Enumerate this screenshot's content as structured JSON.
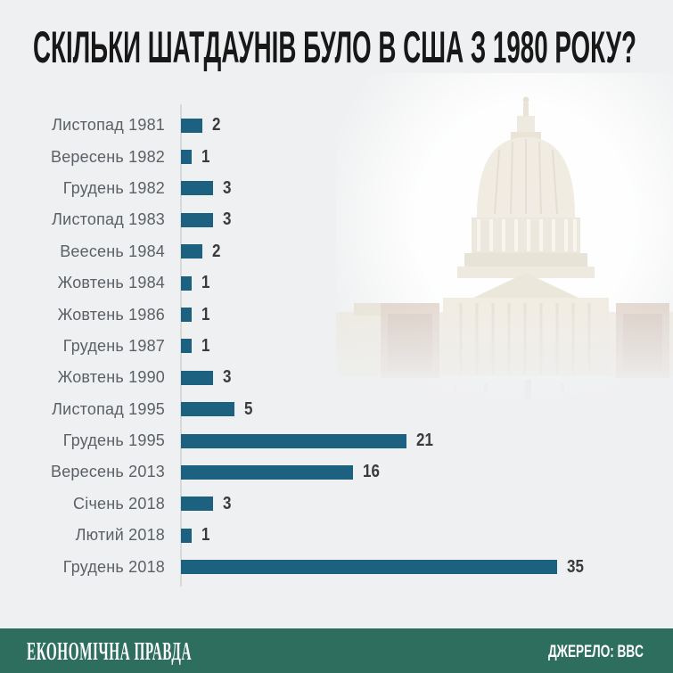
{
  "header": {
    "title": "СКІЛЬКИ ШАТДАУНІВ БУЛО В США З 1980 РОКУ?"
  },
  "chart_data": {
    "type": "bar",
    "orientation": "horizontal",
    "title": "СКІЛЬКИ ШАТДАУНІВ БУЛО В США З 1980 РОКУ?",
    "categories": [
      "Листопад 1981",
      "Вересень 1982",
      "Грудень 1982",
      "Листопад 1983",
      "Веесень 1984",
      "Жовтень 1984",
      "Жовтень 1986",
      "Грудень 1987",
      "Жовтень 1990",
      "Листопад 1995",
      "Грудень 1995",
      "Вересень 2013",
      "Січень 2018",
      "Лютий 2018",
      "Грудень 2018"
    ],
    "values": [
      2,
      1,
      3,
      3,
      2,
      1,
      1,
      1,
      3,
      5,
      21,
      16,
      3,
      1,
      35
    ],
    "xlabel": "",
    "ylabel": "",
    "xlim": [
      0,
      35
    ],
    "grid": false,
    "legend": false,
    "bar_color": "#1d6180",
    "value_labels_shown": true
  },
  "watermark": {
    "name": "us-capitol-building",
    "description": "faded photo of the US Capitol"
  },
  "footer": {
    "brand": "ЕКОНОМІЧНА ПРАВДА",
    "source": "ДЖЕРЕЛО: BBC",
    "background": "#2d6e5f"
  },
  "colors": {
    "page_background": "#eff0f1",
    "bar": "#1d6180",
    "title_text": "#181818",
    "label_text": "#5b6066",
    "value_text": "#3b3b3b",
    "axis_line": "#d7d9da",
    "footer_background": "#2d6e5f",
    "footer_text": "#ffffff"
  }
}
